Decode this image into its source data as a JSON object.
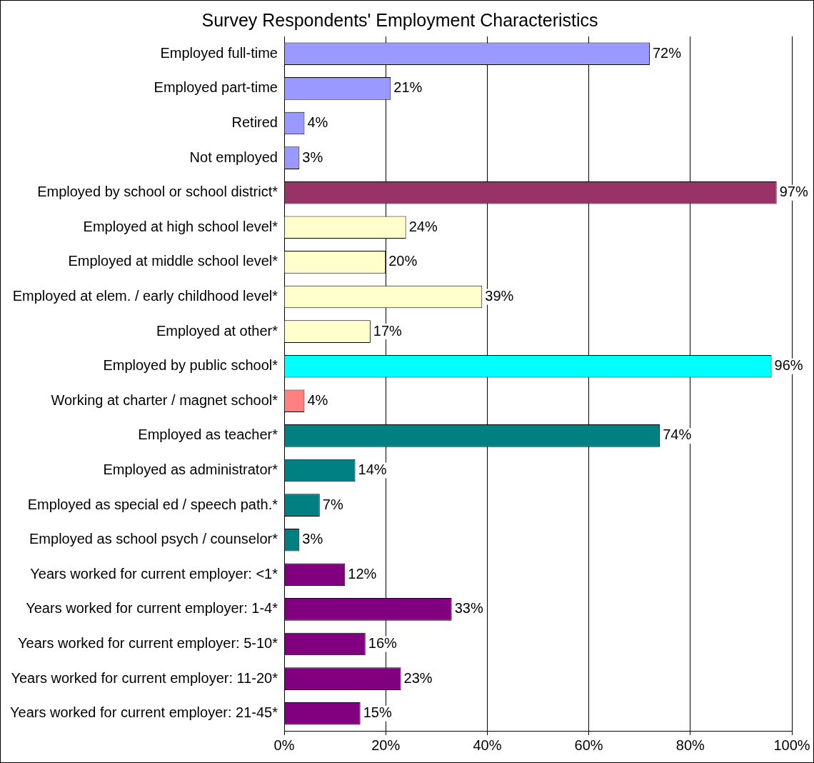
{
  "chart_data": {
    "type": "bar",
    "orientation": "horizontal",
    "title": "Survey Respondents' Employment Characteristics",
    "categories": [
      "Employed full-time",
      "Employed part-time",
      "Retired",
      "Not employed",
      "Employed by school or school district*",
      "Employed at high school level*",
      "Employed at middle school level*",
      "Employed at elem. / early childhood level*",
      "Employed at other*",
      "Employed by public school*",
      "Working at charter / magnet school*",
      "Employed as teacher*",
      "Employed as administrator*",
      "Employed as special ed / speech path.*",
      "Employed as school psych / counselor*",
      "Years worked for current employer: <1*",
      "Years worked for current employer: 1-4*",
      "Years worked for current employer: 5-10*",
      "Years worked for current employer: 11-20*",
      "Years worked for current employer: 21-45*"
    ],
    "values": [
      72,
      21,
      4,
      3,
      97,
      24,
      20,
      39,
      17,
      96,
      4,
      74,
      14,
      7,
      3,
      12,
      33,
      16,
      23,
      15
    ],
    "value_labels": [
      "72%",
      "21%",
      "4%",
      "3%",
      "97%",
      "24%",
      "20%",
      "39%",
      "17%",
      "96%",
      "4%",
      "74%",
      "14%",
      "7%",
      "3%",
      "12%",
      "33%",
      "16%",
      "23%",
      "15%"
    ],
    "colors": [
      "#9999ff",
      "#9999ff",
      "#9999ff",
      "#9999ff",
      "#993366",
      "#ffffcc",
      "#ffffcc",
      "#ffffcc",
      "#ffffcc",
      "#00ffff",
      "#ff8080",
      "#008080",
      "#008080",
      "#008080",
      "#008080",
      "#800080",
      "#800080",
      "#800080",
      "#800080",
      "#800080"
    ],
    "xlim": [
      0,
      100
    ],
    "xticks": [
      {
        "value": 0,
        "label": "0%"
      },
      {
        "value": 20,
        "label": "20%"
      },
      {
        "value": 40,
        "label": "40%"
      },
      {
        "value": 60,
        "label": "60%"
      },
      {
        "value": 80,
        "label": "80%"
      },
      {
        "value": 100,
        "label": "100%"
      }
    ],
    "grid": "x",
    "legend": false
  }
}
